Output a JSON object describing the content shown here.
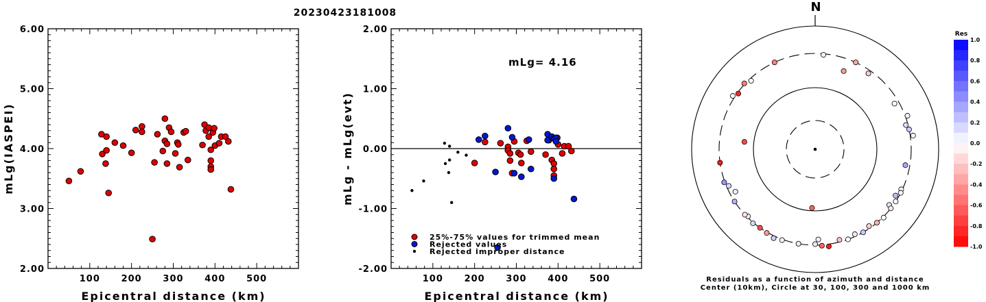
{
  "event_id": "20230423181008",
  "chart_data": [
    {
      "type": "scatter",
      "xlabel": "Epicentral distance (km)",
      "ylabel": "mLg(IASPEI)",
      "xlim": [
        0,
        600
      ],
      "ylim": [
        2.0,
        6.0
      ],
      "x_ticks": [
        "100",
        "200",
        "300",
        "400",
        "500"
      ],
      "y_ticks": [
        "2.00",
        "3.00",
        "4.00",
        "5.00",
        "6.00"
      ],
      "series": [
        {
          "color": "#e00000",
          "points": [
            [
              50,
              3.46
            ],
            [
              78,
              3.62
            ],
            [
              128,
              4.24
            ],
            [
              130,
              3.91
            ],
            [
              138,
              3.75
            ],
            [
              140,
              3.97
            ],
            [
              140,
              4.2
            ],
            [
              145,
              3.26
            ],
            [
              160,
              4.1
            ],
            [
              180,
              4.05
            ],
            [
              200,
              3.93
            ],
            [
              210,
              4.31
            ],
            [
              225,
              4.37
            ],
            [
              225,
              4.28
            ],
            [
              250,
              2.49
            ],
            [
              255,
              3.77
            ],
            [
              262,
              4.24
            ],
            [
              275,
              3.96
            ],
            [
              280,
              4.5
            ],
            [
              280,
              4.13
            ],
            [
              285,
              4.08
            ],
            [
              285,
              3.75
            ],
            [
              290,
              4.35
            ],
            [
              295,
              4.28
            ],
            [
              305,
              3.92
            ],
            [
              310,
              4.1
            ],
            [
              312,
              4.07
            ],
            [
              315,
              3.69
            ],
            [
              325,
              4.27
            ],
            [
              330,
              4.29
            ],
            [
              335,
              3.81
            ],
            [
              370,
              4.06
            ],
            [
              375,
              4.4
            ],
            [
              378,
              4.3
            ],
            [
              385,
              4.35
            ],
            [
              385,
              4.2
            ],
            [
              390,
              3.98
            ],
            [
              390,
              3.8
            ],
            [
              390,
              3.7
            ],
            [
              390,
              3.65
            ],
            [
              395,
              4.27
            ],
            [
              398,
              4.34
            ],
            [
              400,
              4.05
            ],
            [
              410,
              4.09
            ],
            [
              415,
              4.2
            ],
            [
              425,
              4.2
            ],
            [
              432,
              4.12
            ],
            [
              438,
              3.32
            ]
          ]
        }
      ]
    },
    {
      "type": "scatter",
      "xlabel": "Epicentral distance (km)",
      "ylabel": "mLg - mLg(evt)",
      "annotation": "mLg= 4.16",
      "xlim": [
        0,
        600
      ],
      "ylim": [
        -2.0,
        2.0
      ],
      "x_ticks": [
        "100",
        "200",
        "300",
        "400",
        "500"
      ],
      "y_ticks": [
        "-2.00",
        "-1.00",
        "0.00",
        "1.00",
        "2.00"
      ],
      "zero_line": 0.0,
      "series": [
        {
          "name": "25%-75% values for trimmed mean",
          "color": "#e00000",
          "points": [
            [
              200,
              -0.24
            ],
            [
              225,
              0.11
            ],
            [
              262,
              0.09
            ],
            [
              280,
              0.03
            ],
            [
              280,
              -0.03
            ],
            [
              285,
              -0.08
            ],
            [
              285,
              -0.2
            ],
            [
              290,
              -0.41
            ],
            [
              295,
              0.12
            ],
            [
              305,
              -0.07
            ],
            [
              310,
              -0.1
            ],
            [
              312,
              -0.24
            ],
            [
              325,
              0.13
            ],
            [
              335,
              -0.05
            ],
            [
              370,
              -0.1
            ],
            [
              378,
              0.14
            ],
            [
              385,
              -0.19
            ],
            [
              390,
              -0.25
            ],
            [
              390,
              -0.34
            ],
            [
              390,
              -0.45
            ],
            [
              398,
              0.18
            ],
            [
              400,
              0.07
            ],
            [
              410,
              -0.08
            ],
            [
              415,
              0.04
            ],
            [
              425,
              0.04
            ],
            [
              432,
              -0.04
            ]
          ]
        },
        {
          "name": "Rejected values",
          "color": "#0018d0",
          "points": [
            [
              210,
              0.15
            ],
            [
              225,
              0.21
            ],
            [
              250,
              -0.39
            ],
            [
              255,
              -1.65
            ],
            [
              280,
              0.34
            ],
            [
              290,
              0.19
            ],
            [
              295,
              -0.41
            ],
            [
              312,
              -0.47
            ],
            [
              330,
              0.15
            ],
            [
              335,
              -0.34
            ],
            [
              375,
              0.24
            ],
            [
              375,
              0.14
            ],
            [
              385,
              0.2
            ],
            [
              390,
              0.17
            ],
            [
              395,
              0.18
            ],
            [
              390,
              -0.5
            ],
            [
              395,
              0.12
            ],
            [
              438,
              -0.84
            ]
          ]
        },
        {
          "name": "Rejected improper distance",
          "color": "#000000",
          "points": [
            [
              50,
              -0.7
            ],
            [
              78,
              -0.54
            ],
            [
              128,
              0.09
            ],
            [
              130,
              -0.25
            ],
            [
              138,
              -0.4
            ],
            [
              140,
              0.04
            ],
            [
              140,
              -0.19
            ],
            [
              145,
              -0.9
            ],
            [
              160,
              -0.06
            ],
            [
              180,
              -0.11
            ]
          ]
        }
      ]
    },
    {
      "type": "polar",
      "north_label": "N",
      "caption_line1": "Residuals as a function of azimuth and distance",
      "caption_line2": "Center (10km), Circle at 30, 100, 300 and 1000 km",
      "colorbar_title": "Res",
      "colorbar_ticks": [
        "1.0",
        "0.8",
        "0.6",
        "0.4",
        "0.2",
        "0.0",
        "-0.2",
        "-0.4",
        "-0.6",
        "-0.8",
        "-1.0"
      ],
      "stations": [
        {
          "az": 335,
          "dist": 300,
          "res": -0.5
        },
        {
          "az": 25,
          "dist": 300,
          "res": -0.35
        },
        {
          "az": 35,
          "dist": 270,
          "res": -0.2
        },
        {
          "az": 5,
          "dist": 290,
          "res": 0.05
        },
        {
          "az": 20,
          "dist": 200,
          "res": -0.4
        },
        {
          "az": 60,
          "dist": 260,
          "res": 0.0
        },
        {
          "az": 70,
          "dist": 330,
          "res": 0.05
        },
        {
          "az": 75,
          "dist": 280,
          "res": 0.15
        },
        {
          "az": 78,
          "dist": 300,
          "res": 0.2
        },
        {
          "az": 82,
          "dist": 340,
          "res": 0.0
        },
        {
          "az": 100,
          "dist": 260,
          "res": 0.35
        },
        {
          "az": 115,
          "dist": 290,
          "res": 0.0
        },
        {
          "az": 117,
          "dist": 300,
          "res": 0.05
        },
        {
          "az": 120,
          "dist": 270,
          "res": 0.25
        },
        {
          "az": 123,
          "dist": 300,
          "res": 0.0
        },
        {
          "az": 127,
          "dist": 270,
          "res": 0.1
        },
        {
          "az": 128,
          "dist": 300,
          "res": -0.1
        },
        {
          "az": 135,
          "dist": 310,
          "res": 0.0
        },
        {
          "az": 140,
          "dist": 300,
          "res": -0.3
        },
        {
          "az": 145,
          "dist": 280,
          "res": -0.2
        },
        {
          "az": 150,
          "dist": 300,
          "res": 0.2
        },
        {
          "az": 155,
          "dist": 280,
          "res": -0.1
        },
        {
          "az": 160,
          "dist": 300,
          "res": 0.0
        },
        {
          "az": 165,
          "dist": 280,
          "res": -0.25
        },
        {
          "az": 172,
          "dist": 330,
          "res": -0.9
        },
        {
          "az": 176,
          "dist": 310,
          "res": -0.6
        },
        {
          "az": 178,
          "dist": 250,
          "res": 0.05
        },
        {
          "az": 180,
          "dist": 290,
          "res": 0.1
        },
        {
          "az": 183,
          "dist": 90,
          "res": -0.6
        },
        {
          "az": 190,
          "dist": 300,
          "res": -0.1
        },
        {
          "az": 200,
          "dist": 310,
          "res": 0.05
        },
        {
          "az": 205,
          "dist": 330,
          "res": 0.2
        },
        {
          "az": 210,
          "dist": 310,
          "res": -0.4
        },
        {
          "az": 215,
          "dist": 300,
          "res": -0.7
        },
        {
          "az": 220,
          "dist": 310,
          "res": 0.15
        },
        {
          "az": 225,
          "dist": 290,
          "res": 0.05
        },
        {
          "az": 227,
          "dist": 300,
          "res": -0.1
        },
        {
          "az": 237,
          "dist": 300,
          "res": 0.3
        },
        {
          "az": 242,
          "dist": 250,
          "res": 0.05
        },
        {
          "az": 247,
          "dist": 280,
          "res": 0.15
        },
        {
          "az": 250,
          "dist": 310,
          "res": 0.4
        },
        {
          "az": 262,
          "dist": 300,
          "res": -0.9
        },
        {
          "az": 276,
          "dist": 135,
          "res": -0.7
        },
        {
          "az": 303,
          "dist": 330,
          "res": 0.05
        },
        {
          "az": 306,
          "dist": 290,
          "res": -0.85
        },
        {
          "az": 313,
          "dist": 310,
          "res": -0.5
        },
        {
          "az": 317,
          "dist": 280,
          "res": 0.0
        }
      ]
    }
  ]
}
